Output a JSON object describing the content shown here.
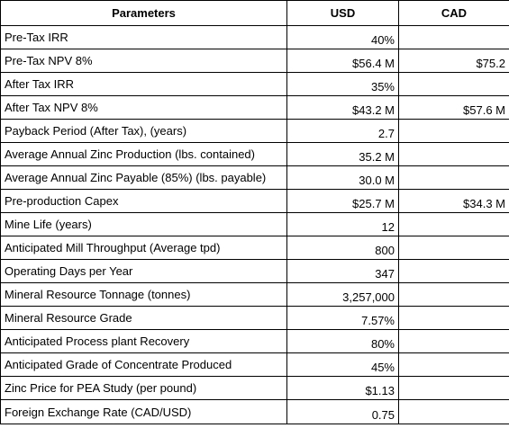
{
  "table": {
    "headers": [
      "Parameters",
      "USD",
      "CAD"
    ],
    "rows": [
      {
        "param": "Pre-Tax IRR",
        "usd": "40%",
        "cad": ""
      },
      {
        "param": "Pre-Tax NPV 8%",
        "usd": "$56.4 M",
        "cad": "$75.2"
      },
      {
        "param": "After Tax IRR",
        "usd": "35%",
        "cad": ""
      },
      {
        "param": "After Tax NPV 8%",
        "usd": "$43.2 M",
        "cad": "$57.6 M"
      },
      {
        "param": "Payback Period (After Tax), (years)",
        "usd": "2.7",
        "cad": ""
      },
      {
        "param": "Average Annual Zinc Production (lbs. contained)",
        "usd": "35.2 M",
        "cad": ""
      },
      {
        "param": "Average Annual Zinc Payable (85%) (lbs. payable)",
        "usd": "30.0 M",
        "cad": ""
      },
      {
        "param": "Pre-production Capex",
        "usd": "$25.7 M",
        "cad": "$34.3 M"
      },
      {
        "param": "Mine Life (years)",
        "usd": "12",
        "cad": ""
      },
      {
        "param": "Anticipated Mill Throughput (Average tpd)",
        "usd": "800",
        "cad": ""
      },
      {
        "param": "Operating Days per Year",
        "usd": "347",
        "cad": ""
      },
      {
        "param": "Mineral Resource Tonnage (tonnes)",
        "usd": "3,257,000",
        "cad": ""
      },
      {
        "param": "Mineral Resource Grade",
        "usd": "7.57%",
        "cad": ""
      },
      {
        "param": "Anticipated Process plant Recovery",
        "usd": "80%",
        "cad": ""
      },
      {
        "param": "Anticipated Grade of Concentrate Produced",
        "usd": "45%",
        "cad": ""
      },
      {
        "param": "Zinc Price for PEA Study (per pound)",
        "usd": "$1.13",
        "cad": ""
      },
      {
        "param": "Foreign Exchange Rate (CAD/USD)",
        "usd": "0.75",
        "cad": ""
      }
    ]
  }
}
